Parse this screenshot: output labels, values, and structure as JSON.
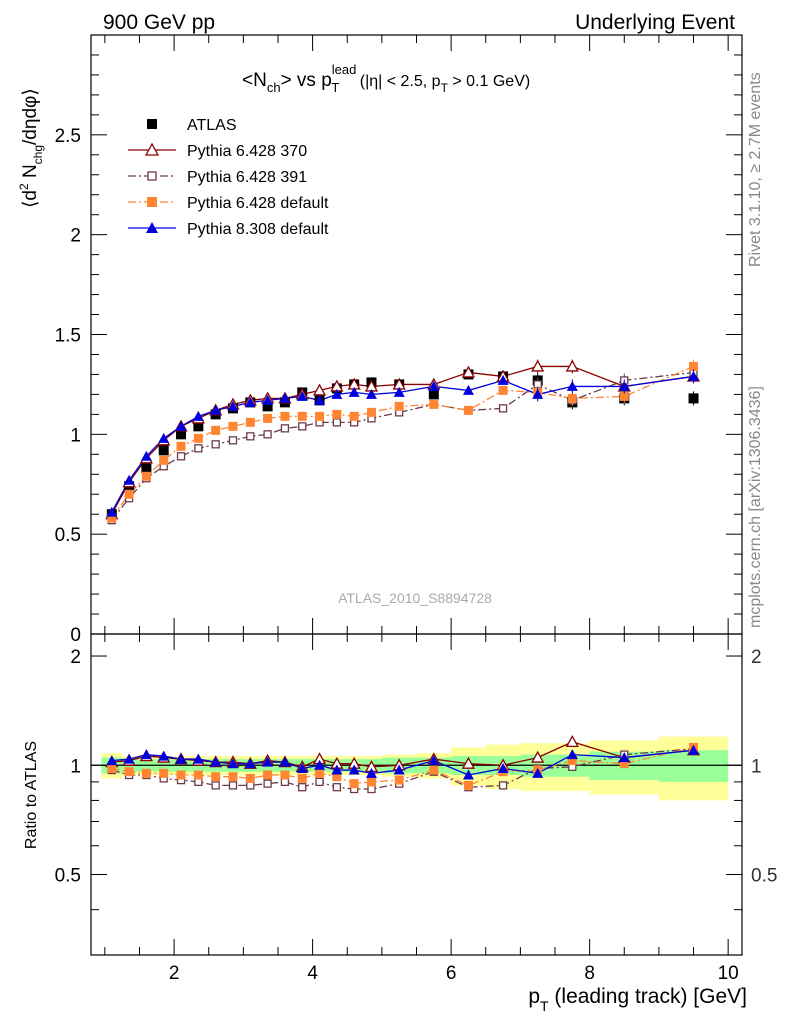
{
  "header": {
    "left": "900 GeV pp",
    "right": "Underlying Event"
  },
  "side_labels": {
    "rivet": "Rivet 3.1.10, ≥ 2.7M events",
    "mcplots": "mcplots.cern.ch [arXiv:1306.3436]"
  },
  "colors": {
    "atlas": "#000000",
    "p6_370": "#8b0000",
    "p6_391": "#6b3b4a",
    "p6_default": "#ff8533",
    "p8_default": "#0000dd",
    "band_inner": "#99ff99",
    "band_outer": "#ffff99"
  },
  "chart_data": [
    {
      "type": "scatter",
      "title_parts": {
        "base": "<N",
        "base_sub": "ch",
        "vs": "> vs p",
        "vs_sup": "lead",
        "vs_sub": "T",
        "cut1": " (|η| < 2.5, p",
        "cut_sub": "T",
        "cut2": " > 0.1 GeV)"
      },
      "ylabel_parts": {
        "open": "⟨d",
        "sup": "2",
        "n": " N",
        "sub": "chg",
        "rest": "/dηdφ⟩"
      },
      "watermark": "ATLAS_2010_S8894728",
      "xlim": [
        0.8,
        10.2
      ],
      "ylim": [
        0,
        3.0
      ],
      "yticks": [
        0,
        0.5,
        1,
        1.5,
        2,
        2.5
      ],
      "ytick_labels": [
        "0",
        "0.5",
        "1",
        "1.5",
        "2",
        "2.5"
      ],
      "x": [
        1.1,
        1.35,
        1.6,
        1.85,
        2.1,
        2.35,
        2.6,
        2.85,
        3.1,
        3.35,
        3.6,
        3.85,
        4.1,
        4.35,
        4.6,
        4.85,
        5.25,
        5.75,
        6.25,
        6.75,
        7.25,
        7.75,
        8.5,
        9.5
      ],
      "legend_position": "top-left",
      "series": [
        {
          "name": "ATLAS",
          "key": "atlas",
          "marker": "square-filled",
          "values": [
            0.6,
            0.74,
            0.83,
            0.92,
            1.0,
            1.04,
            1.1,
            1.13,
            1.16,
            1.14,
            1.16,
            1.21,
            1.17,
            1.23,
            1.25,
            1.26,
            1.25,
            1.2,
            1.3,
            1.29,
            1.27,
            1.16,
            1.18,
            1.18
          ]
        },
        {
          "name": "Pythia 6.428 370",
          "key": "p6_370",
          "marker": "triangle-open",
          "linestyle": "solid",
          "values": [
            0.6,
            0.76,
            0.88,
            0.97,
            1.04,
            1.08,
            1.12,
            1.15,
            1.17,
            1.18,
            1.18,
            1.2,
            1.22,
            1.24,
            1.25,
            1.24,
            1.25,
            1.25,
            1.31,
            1.29,
            1.34,
            1.34,
            1.24,
            1.29
          ]
        },
        {
          "name": "Pythia 6.428 391",
          "key": "p6_391",
          "marker": "square-open",
          "linestyle": "dashdot",
          "values": [
            0.57,
            0.68,
            0.78,
            0.84,
            0.89,
            0.93,
            0.95,
            0.97,
            0.99,
            1.0,
            1.03,
            1.04,
            1.06,
            1.06,
            1.06,
            1.08,
            1.11,
            1.15,
            1.12,
            1.13,
            1.25,
            1.17,
            1.27,
            1.31
          ]
        },
        {
          "name": "Pythia 6.428 default",
          "key": "p6_default",
          "marker": "square-filled",
          "linestyle": "dashdot",
          "values": [
            0.58,
            0.7,
            0.79,
            0.87,
            0.94,
            0.98,
            1.02,
            1.04,
            1.06,
            1.08,
            1.09,
            1.09,
            1.09,
            1.1,
            1.09,
            1.11,
            1.14,
            1.15,
            1.12,
            1.22,
            1.21,
            1.18,
            1.19,
            1.34
          ]
        },
        {
          "name": "Pythia 8.308 default",
          "key": "p8_default",
          "marker": "triangle-filled",
          "linestyle": "solid",
          "values": [
            0.61,
            0.77,
            0.89,
            0.98,
            1.04,
            1.09,
            1.12,
            1.14,
            1.16,
            1.17,
            1.18,
            1.19,
            1.17,
            1.2,
            1.21,
            1.2,
            1.21,
            1.24,
            1.22,
            1.27,
            1.2,
            1.24,
            1.24,
            1.29
          ]
        }
      ]
    },
    {
      "type": "scatter",
      "ylabel": "Ratio to ATLAS",
      "xlabel_parts": {
        "p": "p",
        "sub": "T",
        "rest": " (leading track) [GeV]"
      },
      "xlim": [
        0.8,
        10.2
      ],
      "ylim": [
        0.3,
        2.3
      ],
      "xticks": [
        2,
        4,
        6,
        8,
        10
      ],
      "xtick_labels": [
        "2",
        "4",
        "6",
        "8",
        "10"
      ],
      "yticks": [
        0.5,
        1,
        2
      ],
      "ytick_labels": [
        "0.5",
        "1",
        "2"
      ],
      "reference_line": 1,
      "bins": [
        [
          0.95,
          1.25
        ],
        [
          1.25,
          1.5
        ],
        [
          1.5,
          1.75
        ],
        [
          1.75,
          2.0
        ],
        [
          2.0,
          2.25
        ],
        [
          2.25,
          2.5
        ],
        [
          2.5,
          2.75
        ],
        [
          2.75,
          3.0
        ],
        [
          3.0,
          3.25
        ],
        [
          3.25,
          3.5
        ],
        [
          3.5,
          3.75
        ],
        [
          3.75,
          4.0
        ],
        [
          4.0,
          4.25
        ],
        [
          4.25,
          4.5
        ],
        [
          4.5,
          4.75
        ],
        [
          4.75,
          5.0
        ],
        [
          5.0,
          5.5
        ],
        [
          5.5,
          6.0
        ],
        [
          6.0,
          6.5
        ],
        [
          6.5,
          7.0
        ],
        [
          7.0,
          7.5
        ],
        [
          7.5,
          8.0
        ],
        [
          8.0,
          9.0
        ],
        [
          9.0,
          10.0
        ]
      ],
      "band_inner": [
        0.05,
        0.04,
        0.04,
        0.04,
        0.04,
        0.04,
        0.04,
        0.04,
        0.04,
        0.04,
        0.04,
        0.04,
        0.04,
        0.04,
        0.04,
        0.04,
        0.05,
        0.05,
        0.06,
        0.06,
        0.07,
        0.07,
        0.09,
        0.1
      ],
      "band_outer": [
        0.08,
        0.06,
        0.06,
        0.06,
        0.06,
        0.06,
        0.06,
        0.06,
        0.06,
        0.06,
        0.06,
        0.06,
        0.06,
        0.06,
        0.06,
        0.06,
        0.07,
        0.08,
        0.12,
        0.14,
        0.15,
        0.15,
        0.17,
        0.2
      ],
      "series": [
        {
          "name": "Pythia 6.428 370",
          "key": "p6_370",
          "values": [
            1.02,
            1.03,
            1.06,
            1.05,
            1.04,
            1.03,
            1.02,
            1.02,
            1.01,
            1.03,
            1.02,
            0.99,
            1.04,
            1.01,
            1.01,
            0.99,
            1.0,
            1.04,
            1.01,
            1.0,
            1.05,
            1.16,
            1.05,
            1.1
          ]
        },
        {
          "name": "Pythia 6.428 391",
          "key": "p6_391",
          "values": [
            0.97,
            0.94,
            0.94,
            0.92,
            0.91,
            0.9,
            0.88,
            0.88,
            0.88,
            0.89,
            0.9,
            0.87,
            0.9,
            0.87,
            0.86,
            0.86,
            0.89,
            0.96,
            0.87,
            0.88,
            0.98,
            0.99,
            1.07,
            1.11
          ]
        },
        {
          "name": "Pythia 6.428 default",
          "key": "p6_default",
          "values": [
            0.98,
            0.96,
            0.95,
            0.95,
            0.94,
            0.94,
            0.93,
            0.93,
            0.92,
            0.94,
            0.94,
            0.92,
            0.95,
            0.93,
            0.89,
            0.9,
            0.91,
            0.97,
            0.88,
            0.96,
            0.97,
            1.03,
            1.01,
            1.12
          ]
        },
        {
          "name": "Pythia 8.308 default",
          "key": "p8_default",
          "values": [
            1.03,
            1.04,
            1.07,
            1.06,
            1.04,
            1.04,
            1.02,
            1.01,
            1.01,
            1.02,
            1.02,
            0.98,
            1.0,
            0.97,
            0.97,
            0.95,
            0.97,
            1.03,
            0.94,
            0.98,
            0.95,
            1.07,
            1.05,
            1.1
          ]
        }
      ]
    }
  ]
}
